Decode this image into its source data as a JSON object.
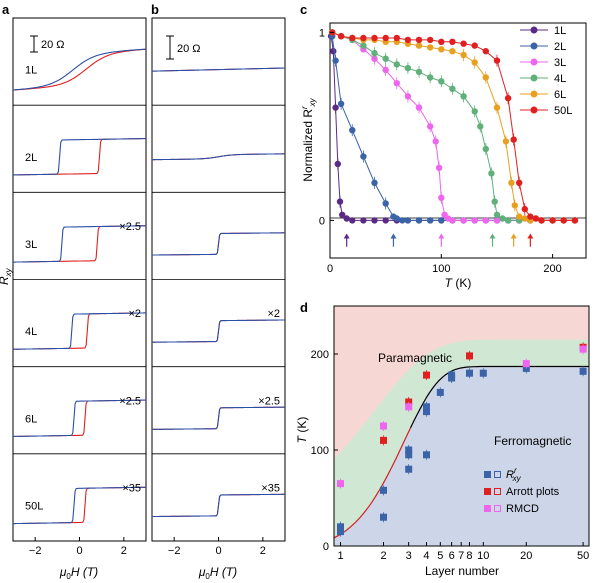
{
  "panel_labels": {
    "a": "a",
    "b": "b",
    "c": "c",
    "d": "d"
  },
  "chart_data": [
    {
      "panel": "a",
      "type": "line",
      "ylabel": "R_xy",
      "ylabel_base": "R",
      "ylabel_sub": "xy",
      "xlabel": "μ0H (T)",
      "xlabel_mu": "μ",
      "xlabel_sub": "0",
      "xlabel_rest": "H (T)",
      "xlim": [
        -3,
        3
      ],
      "xticks": [
        "−2",
        "0",
        "2"
      ],
      "scale_bar": "20 Ω",
      "series_colors": {
        "sweep_down": "#2b4fa8",
        "sweep_up": "#e02020"
      },
      "traces": [
        {
          "name": "1L",
          "factor": "",
          "shape": "smooth",
          "coercive_field": 0.3
        },
        {
          "name": "2L",
          "factor": "",
          "shape": "square",
          "coercive_field": 0.9
        },
        {
          "name": "3L",
          "factor": "×2.5",
          "shape": "square",
          "coercive_field": 0.8
        },
        {
          "name": "4L",
          "factor": "×2",
          "shape": "square",
          "coercive_field": 0.35
        },
        {
          "name": "6L",
          "factor": "×2.5",
          "shape": "square",
          "coercive_field": 0.25
        },
        {
          "name": "50L",
          "factor": "×35",
          "shape": "square",
          "coercive_field": 0.25
        }
      ]
    },
    {
      "panel": "b",
      "type": "line",
      "xlabel": "μ0H (T)",
      "xlabel_mu": "μ",
      "xlabel_sub": "0",
      "xlabel_rest": "H (T)",
      "xlim": [
        -3,
        3
      ],
      "xticks": [
        "−2",
        "0",
        "2"
      ],
      "scale_bar": "20 Ω",
      "factors": [
        "",
        "",
        "",
        "×2",
        "×2.5",
        "×35"
      ]
    },
    {
      "panel": "c",
      "type": "line",
      "xlabel": "T (K)",
      "xlabel_T": "T",
      "xlabel_rest": " (K)",
      "ylabel": "Normalized R^r_xy",
      "ylabel_base": "Normalized R",
      "ylabel_sup": "r",
      "ylabel_sub": "xy",
      "xlim": [
        0,
        230
      ],
      "ylim": [
        -0.2,
        1.05
      ],
      "xticks": [
        0,
        100,
        200
      ],
      "yticks": [
        0,
        1
      ],
      "legend_position": "top-right",
      "series": [
        {
          "name": "1L",
          "color": "#5b2a86",
          "arrow": 15,
          "points": [
            [
              1,
              0.98
            ],
            [
              3,
              0.9
            ],
            [
              5,
              0.6
            ],
            [
              7,
              0.3
            ],
            [
              9,
              0.1
            ],
            [
              11,
              0.03
            ],
            [
              15,
              0.01
            ],
            [
              20,
              0
            ],
            [
              30,
              0
            ],
            [
              40,
              0
            ],
            [
              50,
              0
            ],
            [
              60,
              0
            ],
            [
              70,
              0
            ],
            [
              80,
              0
            ],
            [
              90,
              0
            ],
            [
              100,
              0
            ],
            [
              110,
              0
            ],
            [
              120,
              0
            ],
            [
              130,
              0
            ],
            [
              140,
              0
            ],
            [
              150,
              0
            ],
            [
              160,
              0
            ],
            [
              170,
              0
            ],
            [
              180,
              0
            ],
            [
              190,
              0
            ],
            [
              200,
              0
            ],
            [
              210,
              0
            ],
            [
              220,
              0
            ]
          ]
        },
        {
          "name": "2L",
          "color": "#3a63a8",
          "arrow": 57,
          "points": [
            [
              2,
              0.98
            ],
            [
              5,
              0.85
            ],
            [
              10,
              0.62
            ],
            [
              20,
              0.48
            ],
            [
              30,
              0.34
            ],
            [
              40,
              0.2
            ],
            [
              50,
              0.09
            ],
            [
              57,
              0.02
            ],
            [
              60,
              0.01
            ],
            [
              65,
              0
            ],
            [
              70,
              0
            ],
            [
              80,
              0
            ],
            [
              90,
              0
            ],
            [
              100,
              0
            ],
            [
              110,
              0
            ],
            [
              120,
              0
            ],
            [
              130,
              0
            ],
            [
              140,
              0
            ],
            [
              150,
              0
            ],
            [
              160,
              0
            ],
            [
              170,
              0
            ],
            [
              180,
              0
            ],
            [
              190,
              0
            ],
            [
              200,
              0
            ],
            [
              210,
              0
            ],
            [
              220,
              0
            ]
          ]
        },
        {
          "name": "3L",
          "color": "#ee66ee",
          "arrow": 100,
          "points": [
            [
              2,
              1.0
            ],
            [
              10,
              0.98
            ],
            [
              20,
              0.96
            ],
            [
              30,
              0.91
            ],
            [
              40,
              0.86
            ],
            [
              50,
              0.8
            ],
            [
              60,
              0.73
            ],
            [
              70,
              0.66
            ],
            [
              80,
              0.6
            ],
            [
              90,
              0.5
            ],
            [
              95,
              0.42
            ],
            [
              98,
              0.28
            ],
            [
              100,
              0.12
            ],
            [
              103,
              0.03
            ],
            [
              106,
              0.01
            ],
            [
              110,
              0
            ],
            [
              120,
              0
            ],
            [
              130,
              0
            ],
            [
              140,
              0
            ],
            [
              150,
              0
            ],
            [
              160,
              0
            ],
            [
              170,
              0
            ],
            [
              180,
              0
            ],
            [
              190,
              0
            ],
            [
              200,
              0
            ],
            [
              210,
              0
            ],
            [
              220,
              0
            ]
          ]
        },
        {
          "name": "4L",
          "color": "#5fb07a",
          "arrow": 146,
          "points": [
            [
              2,
              1.0
            ],
            [
              10,
              0.98
            ],
            [
              20,
              0.96
            ],
            [
              30,
              0.93
            ],
            [
              40,
              0.89
            ],
            [
              50,
              0.86
            ],
            [
              60,
              0.83
            ],
            [
              70,
              0.81
            ],
            [
              80,
              0.79
            ],
            [
              90,
              0.76
            ],
            [
              100,
              0.74
            ],
            [
              110,
              0.7
            ],
            [
              120,
              0.66
            ],
            [
              130,
              0.58
            ],
            [
              135,
              0.5
            ],
            [
              140,
              0.38
            ],
            [
              145,
              0.25
            ],
            [
              148,
              0.1
            ],
            [
              150,
              0.03
            ],
            [
              155,
              0.01
            ],
            [
              160,
              0
            ],
            [
              170,
              0
            ],
            [
              180,
              0
            ],
            [
              190,
              0
            ],
            [
              200,
              0
            ],
            [
              210,
              0
            ],
            [
              220,
              0
            ]
          ]
        },
        {
          "name": "6L",
          "color": "#e8a020",
          "arrow": 165,
          "points": [
            [
              2,
              1.0
            ],
            [
              10,
              0.98
            ],
            [
              20,
              0.97
            ],
            [
              30,
              0.96
            ],
            [
              40,
              0.96
            ],
            [
              50,
              0.95
            ],
            [
              60,
              0.95
            ],
            [
              70,
              0.94
            ],
            [
              80,
              0.93
            ],
            [
              90,
              0.92
            ],
            [
              100,
              0.91
            ],
            [
              110,
              0.9
            ],
            [
              120,
              0.88
            ],
            [
              130,
              0.84
            ],
            [
              140,
              0.76
            ],
            [
              150,
              0.6
            ],
            [
              158,
              0.42
            ],
            [
              163,
              0.2
            ],
            [
              166,
              0.08
            ],
            [
              170,
              0.02
            ],
            [
              175,
              0.01
            ],
            [
              180,
              0
            ],
            [
              190,
              0
            ],
            [
              200,
              0
            ],
            [
              210,
              0
            ],
            [
              220,
              0
            ]
          ]
        },
        {
          "name": "50L",
          "color": "#e02020",
          "arrow": 180,
          "points": [
            [
              2,
              1.0
            ],
            [
              10,
              0.98
            ],
            [
              20,
              0.97
            ],
            [
              30,
              0.97
            ],
            [
              40,
              0.97
            ],
            [
              50,
              0.97
            ],
            [
              60,
              0.97
            ],
            [
              70,
              0.96
            ],
            [
              80,
              0.96
            ],
            [
              90,
              0.96
            ],
            [
              100,
              0.95
            ],
            [
              110,
              0.95
            ],
            [
              120,
              0.94
            ],
            [
              130,
              0.93
            ],
            [
              140,
              0.9
            ],
            [
              150,
              0.85
            ],
            [
              160,
              0.65
            ],
            [
              165,
              0.43
            ],
            [
              170,
              0.2
            ],
            [
              175,
              0.06
            ],
            [
              180,
              0.02
            ],
            [
              185,
              0.01
            ],
            [
              190,
              0
            ],
            [
              200,
              0
            ],
            [
              210,
              0
            ],
            [
              220,
              0
            ]
          ]
        }
      ]
    },
    {
      "panel": "d",
      "type": "scatter",
      "xlabel": "Layer number",
      "ylabel": "T (K)",
      "ylabel_T": "T",
      "ylabel_rest": " (K)",
      "xscale": "log",
      "xlim": [
        0.9,
        55
      ],
      "ylim": [
        0,
        250
      ],
      "xticks": [
        1,
        2,
        3,
        4,
        5,
        6,
        7,
        8,
        10,
        20,
        50
      ],
      "xtick_labels": [
        "1",
        "2",
        "3",
        "4",
        "5",
        "6",
        "7",
        "8",
        "10",
        "20",
        "50"
      ],
      "yticks": [
        0,
        100,
        200
      ],
      "region_labels": {
        "paramagnetic": "Paramagnetic",
        "ferromagnetic": "Ferromagnetic"
      },
      "region_colors": {
        "paramagnetic": "#f7d7d3",
        "ferromagnetic": "#cdd6e8",
        "crossover": "#cfe7d3"
      },
      "fit_color": "#000000",
      "fit_curve_low_color": "#d02020",
      "legend": [
        {
          "label": "R^r_xy",
          "label_base": "R",
          "label_sup": "r",
          "label_sub": "xy",
          "color": "#3a63a8",
          "marker": "square"
        },
        {
          "label": "Arrott plots",
          "color": "#e02020",
          "marker": "square"
        },
        {
          "label": "RMCD",
          "color": "#ee66ee",
          "marker": "square"
        }
      ],
      "series": [
        {
          "name": "Rxy",
          "color": "#3a63a8",
          "points": [
            [
              1,
              15
            ],
            [
              1,
              20
            ],
            [
              2,
              30
            ],
            [
              2,
              58
            ],
            [
              3,
              95
            ],
            [
              3,
              100
            ],
            [
              3,
              80
            ],
            [
              4,
              95
            ],
            [
              4,
              140
            ],
            [
              4,
              145
            ],
            [
              5,
              160
            ],
            [
              6,
              175
            ],
            [
              6,
              178
            ],
            [
              8,
              180
            ],
            [
              10,
              180
            ],
            [
              20,
              185
            ],
            [
              50,
              182
            ]
          ]
        },
        {
          "name": "Arrott",
          "color": "#e02020",
          "points": [
            [
              2,
              110
            ],
            [
              3,
              150
            ],
            [
              4,
              178
            ],
            [
              8,
              198
            ],
            [
              50,
              207
            ]
          ]
        },
        {
          "name": "RMCD",
          "color": "#ee66ee",
          "points": [
            [
              1,
              65
            ],
            [
              2,
              125
            ],
            [
              3,
              145
            ],
            [
              20,
              190
            ],
            [
              50,
              205
            ]
          ]
        }
      ]
    }
  ]
}
